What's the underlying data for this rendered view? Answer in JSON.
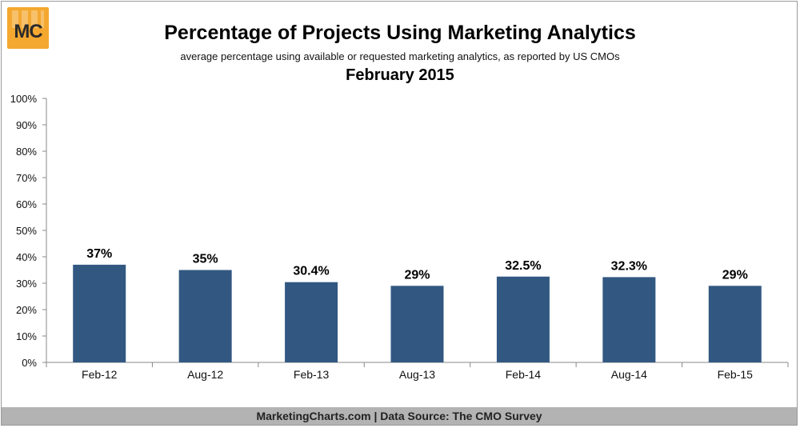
{
  "logo": {
    "text": "MC"
  },
  "header": {
    "title": "Percentage of Projects Using Marketing Analytics",
    "subtitle": "average percentage using available or requested marketing analytics, as reported by US CMOs",
    "date": "February 2015"
  },
  "footer": {
    "text": "MarketingCharts.com | Data Source: The CMO Survey"
  },
  "colors": {
    "bar": "#325882",
    "axis": "#888888",
    "logo": "#f4a830"
  },
  "chart_data": {
    "type": "bar",
    "categories": [
      "Feb-12",
      "Aug-12",
      "Feb-13",
      "Aug-13",
      "Feb-14",
      "Aug-14",
      "Feb-15"
    ],
    "values": [
      37,
      35,
      30.4,
      29,
      32.5,
      32.3,
      29
    ],
    "data_labels": [
      "37%",
      "35%",
      "30.4%",
      "29%",
      "32.5%",
      "32.3%",
      "29%"
    ],
    "y_ticks": [
      "0%",
      "10%",
      "20%",
      "30%",
      "40%",
      "50%",
      "60%",
      "70%",
      "80%",
      "90%",
      "100%"
    ],
    "ylim": [
      0,
      100
    ],
    "grid": false,
    "legend": "none"
  }
}
